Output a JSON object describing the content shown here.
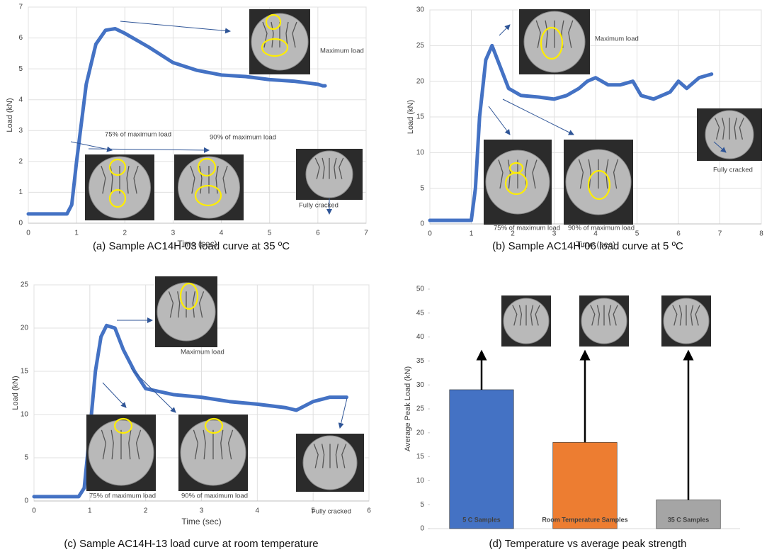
{
  "chart_data": [
    {
      "type": "line",
      "title": "(a) Sample AC14H-03 load curve at 35 ºC",
      "x_label": "Time (sec)",
      "y_label": "Load (kN)",
      "x": [
        0,
        0.8,
        0.9,
        1.0,
        1.2,
        1.4,
        1.6,
        1.8,
        2.0,
        2.5,
        3,
        3.5,
        4,
        4.5,
        5,
        5.5,
        6,
        6.1,
        6.15
      ],
      "values": [
        0.3,
        0.3,
        0.6,
        2,
        4.5,
        5.8,
        6.25,
        6.3,
        6.15,
        5.7,
        5.2,
        4.95,
        4.8,
        4.75,
        4.65,
        4.6,
        4.5,
        4.45,
        4.45
      ],
      "color": "#4472c4",
      "xlim": [
        0,
        7
      ],
      "ylim": [
        0,
        7
      ],
      "xticks": [
        0,
        1,
        2,
        3,
        4,
        5,
        6,
        7
      ],
      "yticks": [
        0,
        1,
        2,
        3,
        4,
        5,
        6,
        7
      ],
      "grid": true,
      "annotations": [
        "Maximum load",
        "75% of maximum load",
        "90% of maximum load",
        "Fully cracked"
      ]
    },
    {
      "type": "line",
      "title": "(b) Sample AC14H-06 load curve at 5 ºC",
      "x_label": "Time (sec)",
      "y_label": "Load (kN)",
      "x": [
        0,
        1.0,
        1.1,
        1.2,
        1.35,
        1.5,
        1.7,
        1.9,
        2.2,
        2.6,
        3,
        3.3,
        3.6,
        3.8,
        4,
        4.3,
        4.6,
        4.9,
        5.1,
        5.4,
        5.8,
        6,
        6.2,
        6.5,
        6.8
      ],
      "values": [
        0.5,
        0.5,
        5,
        15,
        23,
        25,
        22,
        19,
        18,
        17.8,
        17.5,
        18,
        19,
        20,
        20.5,
        19.5,
        19.5,
        20,
        18,
        17.5,
        18.5,
        20,
        19,
        20.5,
        21
      ],
      "color": "#4472c4",
      "xlim": [
        0,
        8
      ],
      "ylim": [
        0,
        30
      ],
      "xticks": [
        0,
        1,
        2,
        3,
        4,
        5,
        6,
        7,
        8
      ],
      "yticks": [
        0,
        5,
        10,
        15,
        20,
        25,
        30
      ],
      "grid": true,
      "annotations": [
        "Maximum load",
        "75% of maximum load",
        "90% of maximum load",
        "Fully cracked"
      ]
    },
    {
      "type": "line",
      "title": "(c) Sample AC14H-13 load curve at room temperature",
      "x_label": "Time (sec)",
      "y_label": "Load (kN)",
      "x": [
        0,
        0.8,
        0.9,
        1.0,
        1.1,
        1.2,
        1.3,
        1.45,
        1.6,
        1.8,
        2.0,
        2.5,
        3,
        3.5,
        4,
        4.5,
        4.7,
        5,
        5.3,
        5.6
      ],
      "values": [
        0.5,
        0.5,
        1.5,
        8,
        15,
        19,
        20.3,
        20,
        17.5,
        15,
        13,
        12.3,
        12,
        11.5,
        11.2,
        10.8,
        10.5,
        11.5,
        12,
        12
      ],
      "color": "#4472c4",
      "xlim": [
        0,
        6
      ],
      "ylim": [
        0,
        25
      ],
      "xticks": [
        0,
        1,
        2,
        3,
        4,
        5,
        6
      ],
      "yticks": [
        0,
        5,
        10,
        15,
        20,
        25
      ],
      "grid": true,
      "annotations": [
        "Maximum load",
        "75% of maximum load",
        "90% of maximum load",
        "Fully cracked"
      ]
    },
    {
      "type": "bar",
      "title": "(d) Temperature vs average peak strength",
      "y_label": "Average Peak Load (kN)",
      "categories": [
        "5 C Samples",
        "Room Temperature Samples",
        "35 C Samples"
      ],
      "values": [
        29,
        18,
        6
      ],
      "colors": [
        "#4472c4",
        "#ed7d31",
        "#a5a5a5"
      ],
      "ylim": [
        0,
        50
      ],
      "yticks": [
        0,
        5,
        10,
        15,
        20,
        25,
        30,
        35,
        40,
        45,
        50
      ],
      "grid": false
    }
  ]
}
